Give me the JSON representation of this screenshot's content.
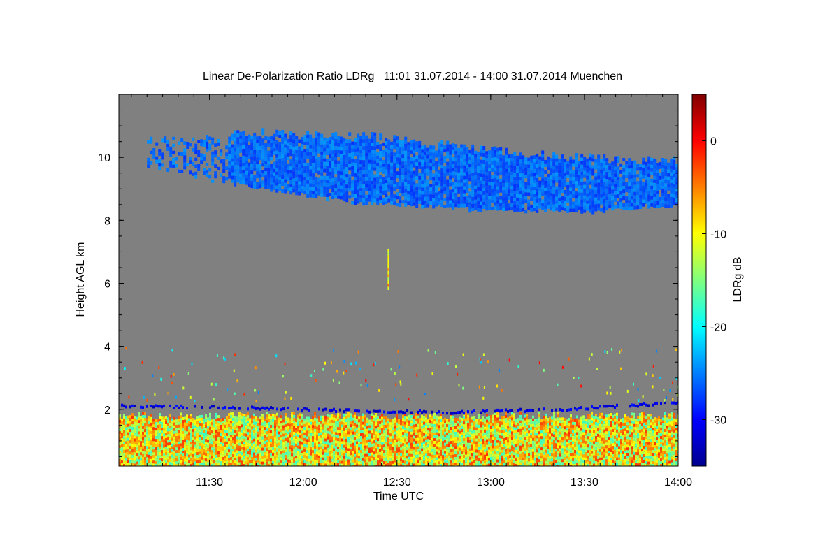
{
  "chart_data": {
    "type": "heatmap",
    "title": "Linear De-Polarization Ratio LDRg   11:01 31.07.2014 - 14:00 31.07.2014 Muenchen",
    "xlabel": "Time UTC",
    "ylabel": "Height AGL km",
    "colorbar_label": "LDRg dB",
    "xlim": [
      "11:01",
      "14:00"
    ],
    "x_ticks": [
      "11:30",
      "12:00",
      "12:30",
      "13:00",
      "13:30",
      "14:00"
    ],
    "ylim": [
      0.2,
      12.0
    ],
    "y_ticks": [
      "2",
      "4",
      "6",
      "8",
      "10"
    ],
    "clim": [
      -35,
      5
    ],
    "colorbar_ticks": [
      "0",
      "-10",
      "-20",
      "-30"
    ],
    "colormap": "jet",
    "background_color": "#808080",
    "features": [
      {
        "name": "cirrus",
        "time_start": "11:10",
        "time_end": "14:00",
        "base_km": [
          9.7,
          9.1,
          8.6,
          8.4,
          8.3,
          8.5
        ],
        "top_km": [
          10.5,
          10.8,
          10.7,
          10.3,
          10.0,
          9.9
        ],
        "ldr_db": -26
      },
      {
        "name": "boundary-layer",
        "time_start": "11:01",
        "time_end": "14:00",
        "base_km": 0.2,
        "top_km": 1.8,
        "ldr_db": -10
      },
      {
        "name": "layer-top-line",
        "time_start": "11:01",
        "time_end": "14:00",
        "height_km": [
          2.15,
          2.1,
          2.0,
          1.95,
          2.05,
          2.25
        ],
        "ldr_db": -31
      },
      {
        "name": "vertical-streak",
        "time": "12:27",
        "base_km": 5.8,
        "top_km": 7.0,
        "ldr_db": -8
      }
    ]
  }
}
